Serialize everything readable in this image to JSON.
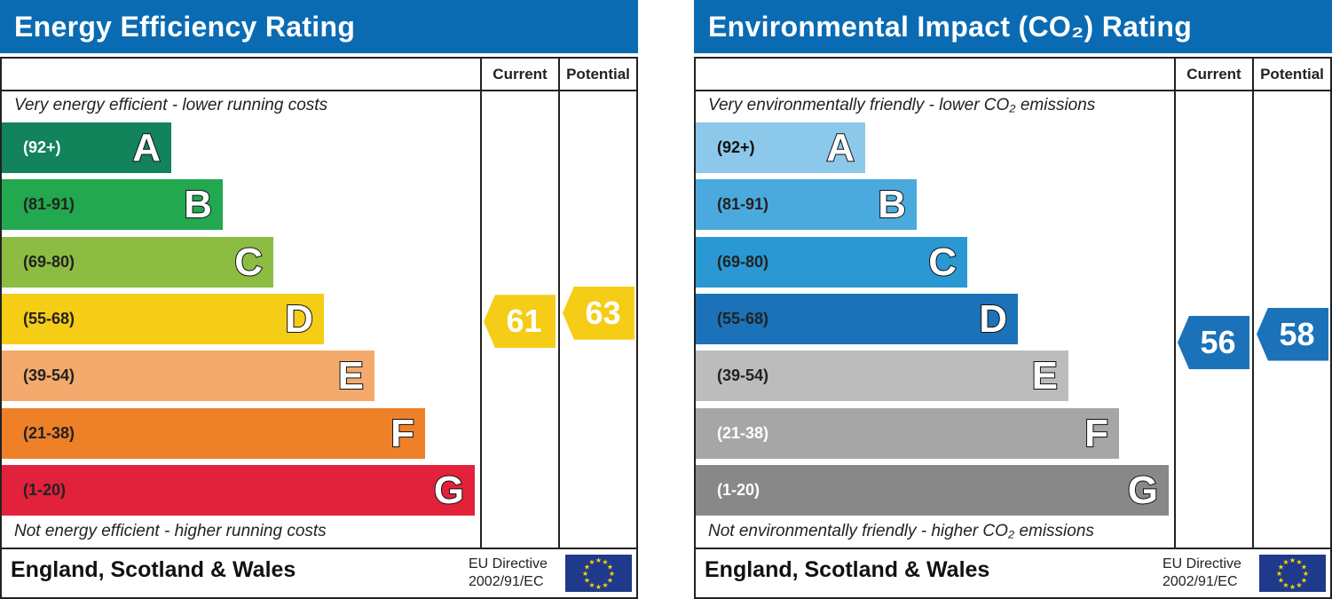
{
  "chart_data": [
    {
      "type": "bar",
      "title": "Energy Efficiency Rating",
      "columns": [
        "Current",
        "Potential"
      ],
      "top_note": "Very energy efficient - lower running costs",
      "bottom_note": "Not energy efficient - higher running costs",
      "bands": [
        {
          "letter": "A",
          "range": "(92+)",
          "color": "#12835a",
          "text": "#ffffff"
        },
        {
          "letter": "B",
          "range": "(81-91)",
          "color": "#22a84e",
          "text": "#222222"
        },
        {
          "letter": "C",
          "range": "(69-80)",
          "color": "#8dbc42",
          "text": "#222222"
        },
        {
          "letter": "D",
          "range": "(55-68)",
          "color": "#f5cd17",
          "text": "#222222"
        },
        {
          "letter": "E",
          "range": "(39-54)",
          "color": "#f3aa6c",
          "text": "#222222"
        },
        {
          "letter": "F",
          "range": "(21-38)",
          "color": "#ee8028",
          "text": "#222222"
        },
        {
          "letter": "G",
          "range": "(1-20)",
          "color": "#e2213b",
          "text": "#222222"
        }
      ],
      "current": 61,
      "potential": 63,
      "arrow_color": "#f5cd17",
      "footer": "England, Scotland & Wales",
      "directive": [
        "EU Directive",
        "2002/91/EC"
      ]
    },
    {
      "type": "bar",
      "title": "Environmental Impact (CO₂) Rating",
      "columns": [
        "Current",
        "Potential"
      ],
      "top_note": "Very environmentally friendly - lower CO₂ emissions",
      "bottom_note": "Not environmentally friendly - higher CO₂ emissions",
      "bands": [
        {
          "letter": "A",
          "range": "(92+)",
          "color": "#8cc8ea",
          "text": "#111111"
        },
        {
          "letter": "B",
          "range": "(81-91)",
          "color": "#4baadd",
          "text": "#222222"
        },
        {
          "letter": "C",
          "range": "(69-80)",
          "color": "#2a98d2",
          "text": "#222222"
        },
        {
          "letter": "D",
          "range": "(55-68)",
          "color": "#1b72b8",
          "text": "#222222"
        },
        {
          "letter": "E",
          "range": "(39-54)",
          "color": "#bcbcbc",
          "text": "#222222"
        },
        {
          "letter": "F",
          "range": "(21-38)",
          "color": "#a6a6a6",
          "text": "#ffffff"
        },
        {
          "letter": "G",
          "range": "(1-20)",
          "color": "#888888",
          "text": "#ffffff"
        }
      ],
      "current": 56,
      "potential": 58,
      "arrow_color": "#1b72b8",
      "footer": "England, Scotland & Wales",
      "directive": [
        "EU Directive",
        "2002/91/EC"
      ]
    }
  ]
}
